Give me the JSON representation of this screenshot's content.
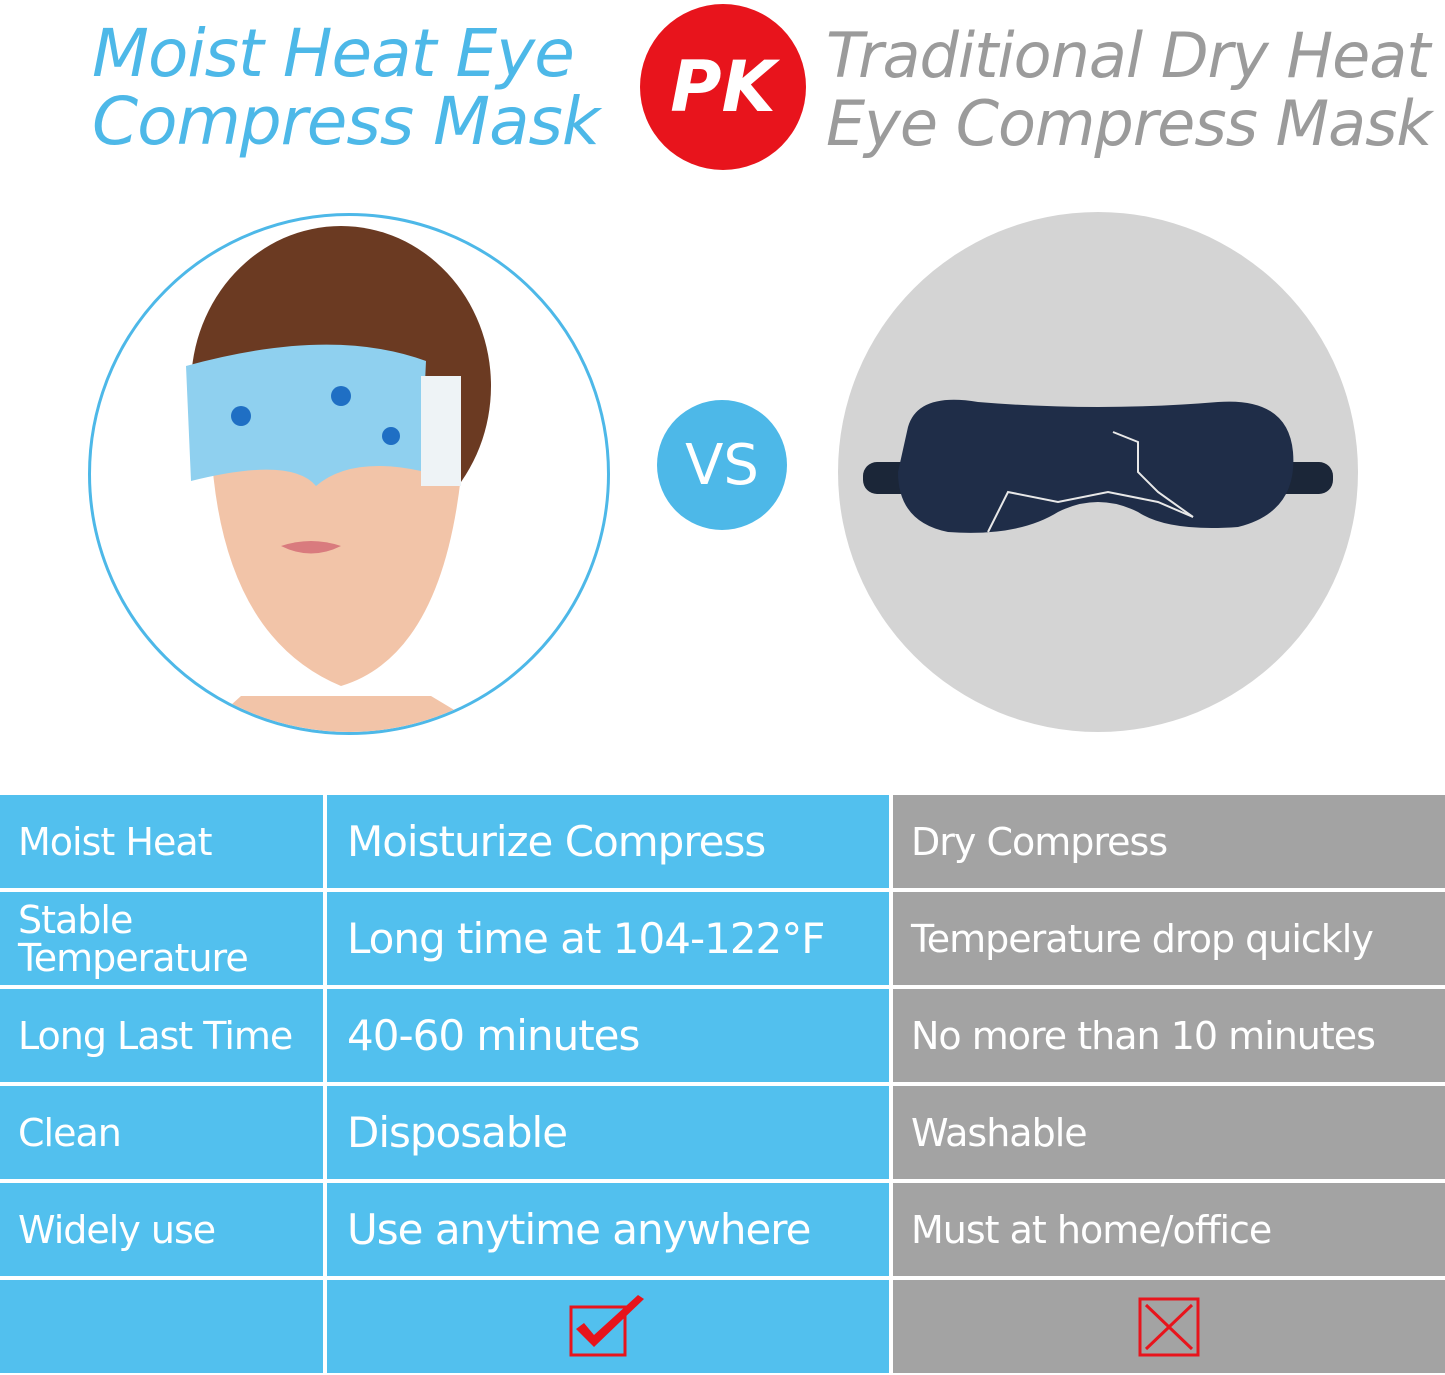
{
  "header": {
    "left_title_line1": "Moist Heat Eye",
    "left_title_line2": "Compress Mask",
    "badge": "PK",
    "right_title_line1": "Traditional Dry Heat",
    "right_title_line2": "Eye Compress Mask"
  },
  "vs_badge": "VS",
  "colors": {
    "blue": "#52c0ee",
    "gray": "#a3a3a3",
    "red": "#e8141c"
  },
  "table": {
    "rows": [
      {
        "feature": "Moist Heat",
        "moist": "Moisturize Compress",
        "dry": "Dry Compress"
      },
      {
        "feature": "Stable Temperature",
        "moist": "Long time at 104-122°F",
        "dry": "Temperature drop quickly"
      },
      {
        "feature": "Long Last Time",
        "moist": "40-60 minutes",
        "dry": "No more than 10 minutes"
      },
      {
        "feature": "Clean",
        "moist": "Disposable",
        "dry": "Washable"
      },
      {
        "feature": "Widely use",
        "moist": "Use anytime anywhere",
        "dry": "Must at home/office"
      }
    ],
    "result": {
      "moist_icon": "checkmark-icon",
      "dry_icon": "x-mark-icon"
    }
  }
}
